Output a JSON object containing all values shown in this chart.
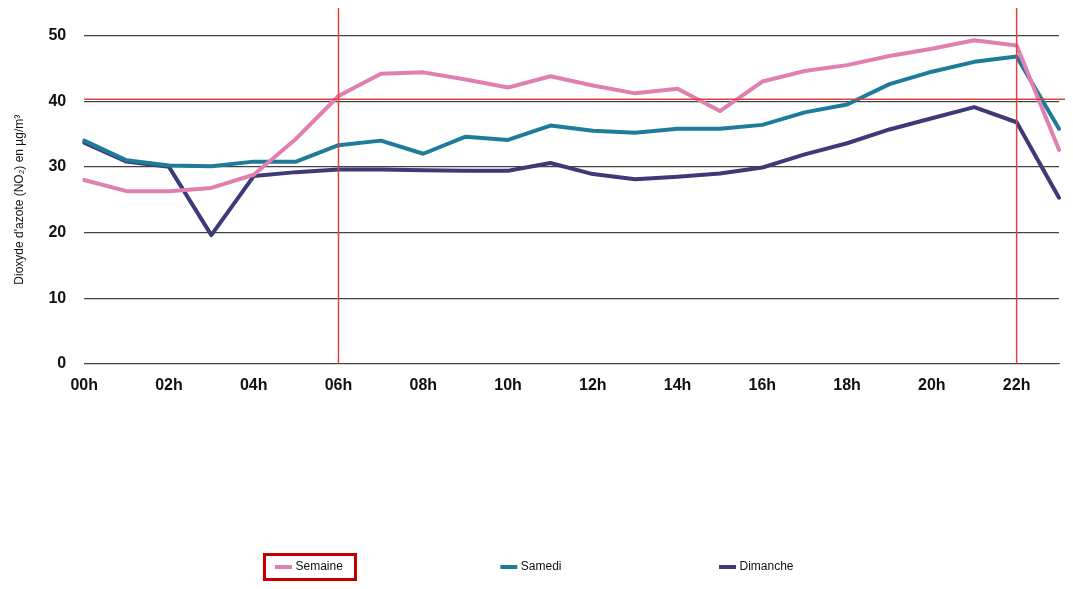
{
  "chart_data": {
    "type": "line",
    "ylabel": "Dioxyde d'azote (NO₂) en µg/m³",
    "categories": [
      "00h",
      null,
      "02h",
      null,
      "04h",
      null,
      "06h",
      null,
      "08h",
      null,
      "10h",
      null,
      "12h",
      null,
      "14h",
      null,
      "16h",
      null,
      "18h",
      null,
      "20h",
      null,
      "22h",
      null
    ],
    "series": [
      {
        "name": "Semaine",
        "color": "#e07fb0",
        "values": [
          28,
          26.3,
          26.3,
          26.8,
          28.8,
          34.3,
          40.8,
          44.2,
          44.4,
          43.3,
          42.1,
          43.8,
          42.4,
          41.2,
          41.9,
          38.5,
          43,
          44.6,
          45.5,
          46.9,
          48,
          49.3,
          48.5,
          32.6
        ]
      },
      {
        "name": "Samedi",
        "color": "#1f7b9a",
        "values": [
          34,
          31,
          30.2,
          30.1,
          30.8,
          30.8,
          33.3,
          34,
          32,
          34.6,
          34.1,
          36.3,
          35.5,
          35.2,
          35.8,
          35.8,
          36.4,
          38.3,
          39.5,
          42.6,
          44.5,
          46,
          46.8,
          35.8
        ]
      },
      {
        "name": "Dimanche",
        "color": "#3e3a78",
        "values": [
          33.7,
          30.8,
          30,
          19.6,
          28.6,
          29.2,
          29.6,
          29.6,
          29.5,
          29.4,
          29.4,
          30.6,
          28.9,
          28.1,
          28.5,
          29,
          29.9,
          31.9,
          33.6,
          35.7,
          37.4,
          39.1,
          36.8,
          25.3
        ]
      }
    ],
    "ylim": [
      0,
      50
    ],
    "yticks": [
      0,
      10,
      20,
      30,
      40,
      50
    ],
    "grid": "y",
    "legend": "bottom",
    "marker": "none",
    "line_style": "solid",
    "ref_lines": [
      {
        "axis": "x",
        "value": "06h",
        "color": "#d9453f"
      },
      {
        "axis": "x",
        "value": "22h",
        "color": "#d9453f"
      },
      {
        "axis": "y",
        "value": 40.3,
        "color": "#d9453f"
      }
    ]
  }
}
